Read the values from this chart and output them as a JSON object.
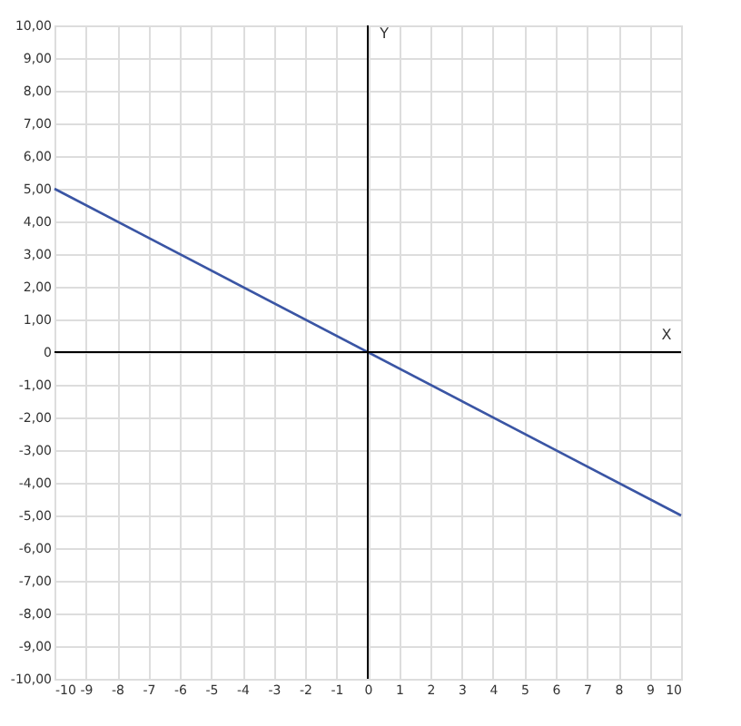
{
  "chart_data": {
    "type": "line",
    "xlabel": "X",
    "ylabel": "Y",
    "x": [
      -10,
      10
    ],
    "series": [
      {
        "color": "#3a55a4",
        "values": [
          5,
          -5
        ]
      }
    ],
    "xlim": [
      -10,
      10
    ],
    "ylim": [
      -10,
      10
    ],
    "xticks": [
      -10,
      -9,
      -8,
      -7,
      -6,
      -5,
      -4,
      -3,
      -2,
      -1,
      0,
      1,
      2,
      3,
      4,
      5,
      6,
      7,
      8,
      9,
      10
    ],
    "yticks": [
      {
        "value": 10,
        "label": "10,00"
      },
      {
        "value": 9,
        "label": "9,00"
      },
      {
        "value": 8,
        "label": "8,00"
      },
      {
        "value": 7,
        "label": "7,00"
      },
      {
        "value": 6,
        "label": "6,00"
      },
      {
        "value": 5,
        "label": "5,00"
      },
      {
        "value": 4,
        "label": "4,00"
      },
      {
        "value": 3,
        "label": "3,00"
      },
      {
        "value": 2,
        "label": "2,00"
      },
      {
        "value": 1,
        "label": "1,00"
      },
      0,
      {
        "value": -1,
        "label": "-1,00"
      },
      {
        "value": -2,
        "label": "-2,00"
      },
      {
        "value": -3,
        "label": "-3,00"
      },
      {
        "value": -4,
        "label": "-4,00"
      },
      {
        "value": -5,
        "label": "-5,00"
      },
      {
        "value": -6,
        "label": "-6,00"
      },
      {
        "value": -7,
        "label": "-7,00"
      },
      {
        "value": -8,
        "label": "-8,00"
      },
      {
        "value": -9,
        "label": "-9,00"
      },
      {
        "value": -10,
        "label": "-10,00"
      }
    ],
    "grid": true,
    "marker": "none",
    "line_style": "solid"
  }
}
